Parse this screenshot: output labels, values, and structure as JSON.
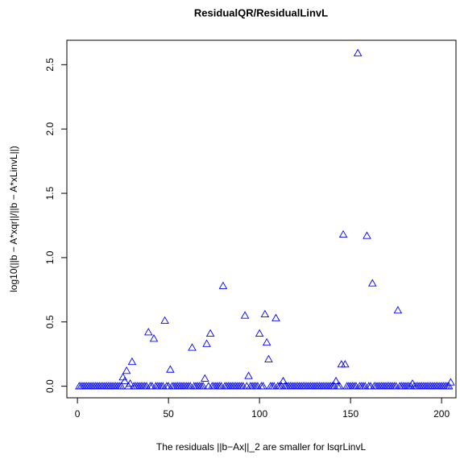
{
  "chart_data": {
    "type": "scatter",
    "title": "ResidualQR/ResidualLinvL",
    "x_label": "The residuals ||b−Ax||_2 are smaller for lsqrLinvL",
    "y_label": "log10(||b − A*xqr||/||b − A*xLinvL||)",
    "color": "#0000ff",
    "marker": "triangle",
    "xlim": [
      -5.8,
      207.9
    ],
    "ylim": [
      -0.09,
      2.69
    ],
    "xticks": [
      0,
      50,
      100,
      150,
      200
    ],
    "yticks": [
      {
        "value": 0,
        "label": "0.0"
      },
      0.5,
      {
        "value": 1,
        "label": "1.0"
      },
      1.5,
      {
        "value": 2,
        "label": "2.0"
      },
      2.5
    ],
    "x": [
      1,
      2,
      3,
      4,
      5,
      6,
      7,
      8,
      9,
      10,
      11,
      12,
      13,
      14,
      15,
      16,
      17,
      18,
      19,
      20,
      21,
      22,
      23,
      24,
      25,
      26,
      27,
      28,
      29,
      30,
      31,
      32,
      33,
      34,
      35,
      36,
      37,
      38,
      39,
      40,
      41,
      42,
      43,
      44,
      45,
      46,
      47,
      48,
      49,
      50,
      51,
      52,
      53,
      54,
      55,
      56,
      57,
      58,
      59,
      60,
      61,
      62,
      63,
      64,
      65,
      66,
      67,
      68,
      69,
      70,
      71,
      72,
      73,
      74,
      75,
      76,
      77,
      78,
      79,
      80,
      81,
      82,
      83,
      84,
      85,
      86,
      87,
      88,
      89,
      90,
      91,
      92,
      93,
      94,
      95,
      96,
      97,
      98,
      99,
      100,
      101,
      102,
      103,
      104,
      105,
      106,
      107,
      108,
      109,
      110,
      111,
      112,
      113,
      114,
      115,
      116,
      117,
      118,
      119,
      120,
      121,
      122,
      123,
      124,
      125,
      126,
      127,
      128,
      129,
      130,
      131,
      132,
      133,
      134,
      135,
      136,
      137,
      138,
      139,
      140,
      141,
      142,
      143,
      144,
      145,
      146,
      147,
      148,
      149,
      150,
      151,
      152,
      153,
      154,
      155,
      156,
      157,
      158,
      159,
      160,
      161,
      162,
      163,
      164,
      165,
      166,
      167,
      168,
      169,
      170,
      171,
      172,
      173,
      174,
      175,
      176,
      177,
      178,
      179,
      180,
      181,
      182,
      183,
      184,
      185,
      186,
      187,
      188,
      189,
      190,
      191,
      192,
      193,
      194,
      195,
      196,
      197,
      198,
      199,
      200,
      201,
      202,
      203,
      204,
      205
    ],
    "values": [
      0,
      0,
      0,
      0,
      0,
      0,
      0,
      0,
      0,
      0,
      0,
      0,
      0,
      0,
      0,
      0,
      0,
      0,
      0,
      0,
      0,
      0,
      0,
      0,
      0.07,
      0.04,
      0.12,
      0,
      0.02,
      0.19,
      0,
      0,
      0,
      0,
      0,
      0,
      0,
      0,
      0.42,
      0,
      0,
      0.37,
      0,
      0,
      0,
      0,
      0,
      0.51,
      0,
      0,
      0.13,
      0,
      0,
      0,
      0,
      0,
      0,
      0,
      0,
      0,
      0,
      0,
      0.3,
      0,
      0,
      0,
      0,
      0,
      0,
      0.06,
      0.33,
      0,
      0.41,
      0,
      0,
      0,
      0,
      0,
      0,
      0.78,
      0,
      0,
      0,
      0,
      0,
      0,
      0,
      0,
      0,
      0,
      0,
      0.55,
      0,
      0.08,
      0,
      0,
      0,
      0,
      0,
      0.41,
      0,
      0,
      0.56,
      0.34,
      0.21,
      0,
      0,
      0,
      0.53,
      0,
      0,
      0,
      0.04,
      0,
      0,
      0,
      0,
      0,
      0,
      0,
      0,
      0,
      0,
      0,
      0,
      0,
      0,
      0,
      0,
      0,
      0,
      0,
      0,
      0,
      0,
      0,
      0,
      0,
      0,
      0,
      0,
      0.04,
      0,
      0,
      0.17,
      1.18,
      0.17,
      0,
      0,
      0,
      0,
      0,
      0,
      2.59,
      0,
      0,
      0,
      0,
      1.17,
      0,
      0,
      0.8,
      0,
      0,
      0,
      0,
      0,
      0,
      0,
      0,
      0,
      0,
      0,
      0,
      0,
      0.59,
      0,
      0,
      0,
      0,
      0,
      0,
      0,
      0.02,
      0,
      0,
      0,
      0,
      0,
      0,
      0,
      0,
      0,
      0,
      0,
      0,
      0,
      0,
      0,
      0,
      0,
      0,
      0,
      0,
      0.03
    ]
  }
}
